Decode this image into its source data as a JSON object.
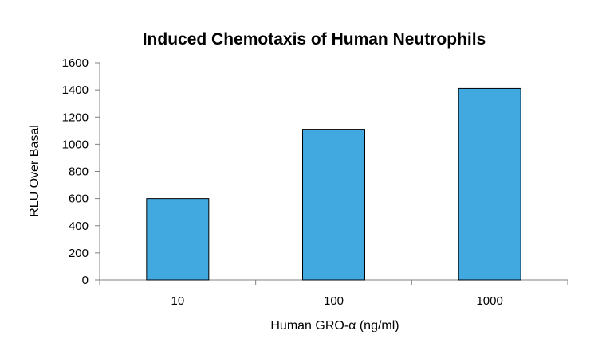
{
  "chart_data": {
    "type": "bar",
    "title": "Induced Chemotaxis of Human Neutrophils",
    "xlabel": "Human GRO-α (ng/ml)",
    "ylabel": "RLU Over Basal",
    "categories": [
      "10",
      "100",
      "1000"
    ],
    "values": [
      600,
      1110,
      1410
    ],
    "ylim": [
      0,
      1600
    ],
    "yticks": [
      0,
      200,
      400,
      600,
      800,
      1000,
      1200,
      1400,
      1600
    ],
    "grid": false,
    "legend": "none",
    "bar_color": "#41a8e0"
  }
}
